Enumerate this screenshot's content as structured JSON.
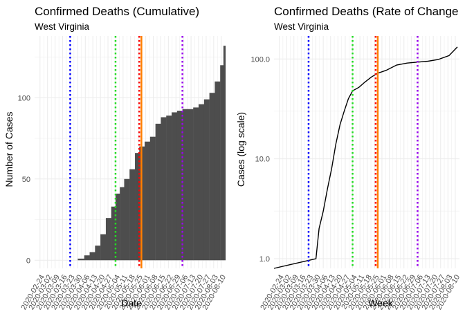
{
  "chart_data": [
    {
      "type": "bar",
      "title": "Confirmed Deaths (Cumulative)",
      "subtitle": "West Virginia",
      "xlabel": "Date",
      "ylabel": "Number of Cases",
      "x_ticks": [
        "2020-02-24",
        "2020-03-02",
        "2020-03-09",
        "2020-03-16",
        "2020-03-23",
        "2020-03-30",
        "2020-04-06",
        "2020-04-13",
        "2020-04-20",
        "2020-04-27",
        "2020-05-04",
        "2020-05-11",
        "2020-05-18",
        "2020-05-25",
        "2020-06-01",
        "2020-06-08",
        "2020-06-15",
        "2020-06-22",
        "2020-06-29",
        "2020-07-06",
        "2020-07-13",
        "2020-07-20",
        "2020-07-27",
        "2020-08-03",
        "2020-08-10"
      ],
      "y_ticks": [
        "0",
        "50",
        "100"
      ],
      "ylim": [
        -5,
        138
      ],
      "xlim": [
        "2020-02-19",
        "2020-08-14"
      ],
      "grid": true,
      "series": [
        {
          "x": [
            "2020-03-30",
            "2020-04-05",
            "2020-04-10",
            "2020-04-15",
            "2020-04-20",
            "2020-04-25",
            "2020-04-30",
            "2020-05-04",
            "2020-05-08",
            "2020-05-12",
            "2020-05-17",
            "2020-05-22",
            "2020-05-26",
            "2020-05-31",
            "2020-06-05",
            "2020-06-10",
            "2020-06-15",
            "2020-06-20",
            "2020-06-25",
            "2020-06-30",
            "2020-07-05",
            "2020-07-10",
            "2020-07-15",
            "2020-07-20",
            "2020-07-25",
            "2020-07-30",
            "2020-08-04",
            "2020-08-09",
            "2020-08-12"
          ],
          "values": [
            1,
            3,
            5,
            9,
            16,
            26,
            33,
            41,
            45,
            50,
            56,
            66,
            70,
            73,
            76,
            84,
            88,
            89,
            91,
            92,
            93,
            93,
            94,
            96,
            99,
            103,
            110,
            120,
            132
          ]
        }
      ],
      "vlines": [
        {
          "x": "2020-03-23",
          "color": "#0000ff",
          "style": "dotted"
        },
        {
          "x": "2020-05-04",
          "color": "#22dd22",
          "style": "dotted"
        },
        {
          "x": "2020-05-26",
          "color": "#ff0000",
          "style": "dotted"
        },
        {
          "x": "2020-05-28",
          "color": "#ff7f00",
          "style": "solid"
        },
        {
          "x": "2020-07-05",
          "color": "#9900ee",
          "style": "dotted"
        }
      ],
      "colors": {
        "bar": "#4d4d4d",
        "grid": "#ebebeb"
      }
    },
    {
      "type": "line",
      "title": "Confirmed Deaths (Rate of Change",
      "subtitle": "West Virginia",
      "xlabel": "Week",
      "ylabel": "Cases (log scale)",
      "scale_y": "log",
      "x_ticks": [
        "2020-02-24",
        "2020-03-02",
        "2020-03-09",
        "2020-03-16",
        "2020-03-23",
        "2020-03-30",
        "2020-04-06",
        "2020-04-13",
        "2020-04-20",
        "2020-04-27",
        "2020-05-04",
        "2020-05-11",
        "2020-05-18",
        "2020-05-25",
        "2020-06-01",
        "2020-06-08",
        "2020-06-15",
        "2020-06-22",
        "2020-06-29",
        "2020-07-06",
        "2020-07-13",
        "2020-07-20",
        "2020-07-27",
        "2020-08-03",
        "2020-08-10"
      ],
      "y_ticks": [
        "1.0",
        "10.0",
        "100.0"
      ],
      "ylim": [
        0.8,
        170
      ],
      "xlim": [
        "2020-02-19",
        "2020-08-14"
      ],
      "grid": true,
      "series": [
        {
          "x": [
            "2020-02-19",
            "2020-03-30",
            "2020-04-02",
            "2020-04-06",
            "2020-04-10",
            "2020-04-14",
            "2020-04-18",
            "2020-04-22",
            "2020-04-26",
            "2020-04-30",
            "2020-05-04",
            "2020-05-10",
            "2020-05-16",
            "2020-05-22",
            "2020-05-28",
            "2020-06-05",
            "2020-06-15",
            "2020-06-25",
            "2020-07-05",
            "2020-07-15",
            "2020-07-25",
            "2020-08-04",
            "2020-08-12"
          ],
          "values": [
            0.8,
            1,
            2,
            3,
            5,
            8,
            14,
            22,
            30,
            40,
            48,
            52,
            59,
            66,
            72,
            77,
            87,
            91,
            93,
            95,
            99,
            108,
            132
          ]
        }
      ],
      "vlines": [
        {
          "x": "2020-03-23",
          "color": "#0000ff",
          "style": "dotted"
        },
        {
          "x": "2020-05-04",
          "color": "#22dd22",
          "style": "dotted"
        },
        {
          "x": "2020-05-26",
          "color": "#ff0000",
          "style": "dotted"
        },
        {
          "x": "2020-05-28",
          "color": "#ff7f00",
          "style": "solid"
        },
        {
          "x": "2020-07-05",
          "color": "#9900ee",
          "style": "dotted"
        }
      ],
      "colors": {
        "line": "#000000",
        "grid": "#ebebeb"
      }
    }
  ]
}
